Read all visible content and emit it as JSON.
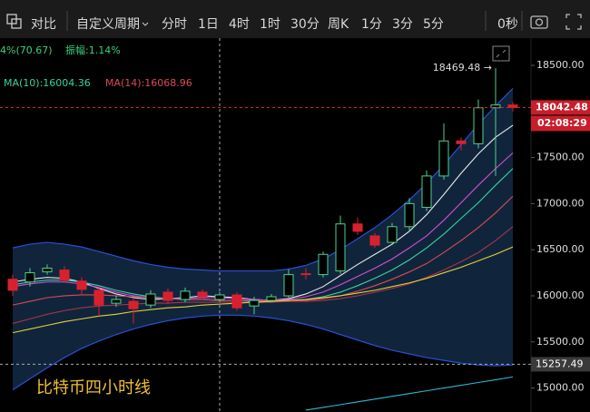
{
  "toolbar": {
    "compare": "对比",
    "custom_period": "自定义周期",
    "periods": [
      "分时",
      "1日",
      "4时",
      "1时",
      "30分",
      "周K",
      "1分",
      "3分",
      "5分"
    ],
    "active_period": 2,
    "countdown": "0秒"
  },
  "chart_data": {
    "type": "candlestick",
    "info": {
      "change": "4%(70.67)",
      "amplitude": "振幅:1.14%",
      "ma10": "MA(10):16004.36",
      "ma14": "MA(14):16068.96"
    },
    "watermark": "比特币四小时线",
    "high_marker": "18469.48 →",
    "high_index": 28,
    "current_price": 18042.48,
    "countdown": "02:08:29",
    "band_low_price": 15257.49,
    "crosshair_index": 12,
    "up_color": "#4fd18b",
    "down_color": "#d8212f",
    "open": [
      16180,
      16150,
      16260,
      16280,
      16160,
      16060,
      15920,
      15940,
      15900,
      16040,
      15960,
      16040,
      15960,
      16010,
      15890,
      15950,
      16000,
      16240,
      16230,
      16270,
      16780,
      16650,
      16580,
      16750,
      16960,
      17300,
      17680,
      17650,
      18040,
      18070
    ],
    "close": [
      16060,
      16250,
      16300,
      16170,
      16070,
      15900,
      15960,
      15860,
      16020,
      15950,
      16050,
      15990,
      16010,
      15870,
      15950,
      15990,
      16230,
      16230,
      16450,
      16780,
      16700,
      16550,
      16750,
      17000,
      17300,
      17680,
      17650,
      18040,
      18070,
      18042.48
    ],
    "high": [
      16230,
      16300,
      16340,
      16320,
      16200,
      16100,
      16000,
      15980,
      16060,
      16080,
      16090,
      16070,
      16040,
      16040,
      15990,
      16020,
      16290,
      16300,
      16480,
      16870,
      16850,
      16680,
      16790,
      17060,
      17360,
      17870,
      17720,
      18130,
      18469.48,
      18100
    ],
    "low": [
      16000,
      16100,
      16230,
      16140,
      16010,
      15780,
      15880,
      15700,
      15870,
      15910,
      15930,
      15950,
      15930,
      15840,
      15800,
      15930,
      15980,
      16180,
      16200,
      16240,
      16660,
      16520,
      16550,
      16700,
      16920,
      17260,
      17580,
      17600,
      17300,
      18000
    ],
    "band": {
      "color": "#2a4fd6",
      "fill": "#10253c",
      "upper": [
        16520,
        16560,
        16580,
        16560,
        16530,
        16480,
        16430,
        16380,
        16340,
        16310,
        16290,
        16280,
        16270,
        16270,
        16270,
        16270,
        16290,
        16330,
        16400,
        16500,
        16620,
        16740,
        16880,
        17040,
        17220,
        17420,
        17640,
        17860,
        18060,
        18250
      ],
      "lower": [
        14980,
        15100,
        15220,
        15330,
        15430,
        15510,
        15580,
        15640,
        15690,
        15730,
        15760,
        15780,
        15790,
        15790,
        15780,
        15760,
        15730,
        15690,
        15640,
        15580,
        15520,
        15460,
        15410,
        15370,
        15330,
        15300,
        15270,
        15250,
        15240,
        15250
      ]
    },
    "series": [
      {
        "color": "#e8e8e8",
        "values": [
          16150,
          16180,
          16200,
          16190,
          16150,
          16080,
          16020,
          15980,
          15960,
          15970,
          15980,
          16000,
          15990,
          15980,
          15960,
          15950,
          15970,
          16020,
          16100,
          16220,
          16340,
          16450,
          16560,
          16700,
          16880,
          17100,
          17330,
          17540,
          17720,
          17850
        ]
      },
      {
        "color": "#d24fd6",
        "values": [
          16100,
          16130,
          16150,
          16150,
          16130,
          16090,
          16040,
          16000,
          15980,
          15970,
          15970,
          15980,
          15980,
          15970,
          15960,
          15950,
          15960,
          15990,
          16040,
          16120,
          16210,
          16300,
          16400,
          16520,
          16650,
          16820,
          17010,
          17200,
          17380,
          17550
        ]
      },
      {
        "color": "#3ad1a3",
        "values": [
          16120,
          16150,
          16170,
          16170,
          16150,
          16110,
          16060,
          16020,
          15990,
          15970,
          15960,
          15960,
          15950,
          15950,
          15940,
          15940,
          15940,
          15960,
          15990,
          16040,
          16110,
          16190,
          16280,
          16390,
          16520,
          16670,
          16840,
          17010,
          17200,
          17380
        ]
      },
      {
        "color": "#d84a55",
        "values": [
          15900,
          15940,
          15980,
          16000,
          16010,
          16010,
          16000,
          15990,
          15980,
          15970,
          15960,
          15960,
          15950,
          15950,
          15950,
          15940,
          15940,
          15950,
          15970,
          16000,
          16050,
          16110,
          16180,
          16260,
          16350,
          16470,
          16600,
          16740,
          16900,
          17080
        ]
      },
      {
        "color": "#a8344a",
        "values": [
          15700,
          15750,
          15800,
          15840,
          15870,
          15890,
          15900,
          15910,
          15920,
          15920,
          15930,
          15930,
          15930,
          15930,
          15930,
          15930,
          15940,
          15940,
          15950,
          15970,
          16000,
          16040,
          16080,
          16130,
          16200,
          16280,
          16370,
          16470,
          16600,
          16750
        ]
      },
      {
        "color": "#e8cf3a",
        "values": [
          15600,
          15640,
          15680,
          15720,
          15750,
          15780,
          15800,
          15830,
          15850,
          15870,
          15880,
          15900,
          15910,
          15920,
          15930,
          15940,
          15950,
          15960,
          15980,
          16000,
          16030,
          16060,
          16100,
          16140,
          16190,
          16250,
          16310,
          16380,
          16450,
          16530
        ]
      },
      {
        "color": "#2fb6d8",
        "values": [
          null,
          null,
          null,
          null,
          null,
          null,
          null,
          null,
          null,
          null,
          null,
          null,
          null,
          null,
          null,
          null,
          null,
          14760,
          14790,
          14820,
          14850,
          14880,
          14910,
          14940,
          14970,
          15000,
          15030,
          15060,
          15090,
          15120
        ]
      }
    ],
    "ylim": [
      14740,
      18795
    ],
    "yticks": [
      {
        "value": 15000,
        "label": "15000.00"
      },
      {
        "value": 15500,
        "label": "15500.00"
      },
      {
        "value": 16000,
        "label": "16000.00"
      },
      {
        "value": 16500,
        "label": "16500.00"
      },
      {
        "value": 17000,
        "label": "17000.00"
      },
      {
        "value": 17500,
        "label": "17500.00"
      },
      {
        "value": 18000,
        "label": "18000.00"
      },
      {
        "value": 18500,
        "label": "18500.00"
      }
    ]
  }
}
